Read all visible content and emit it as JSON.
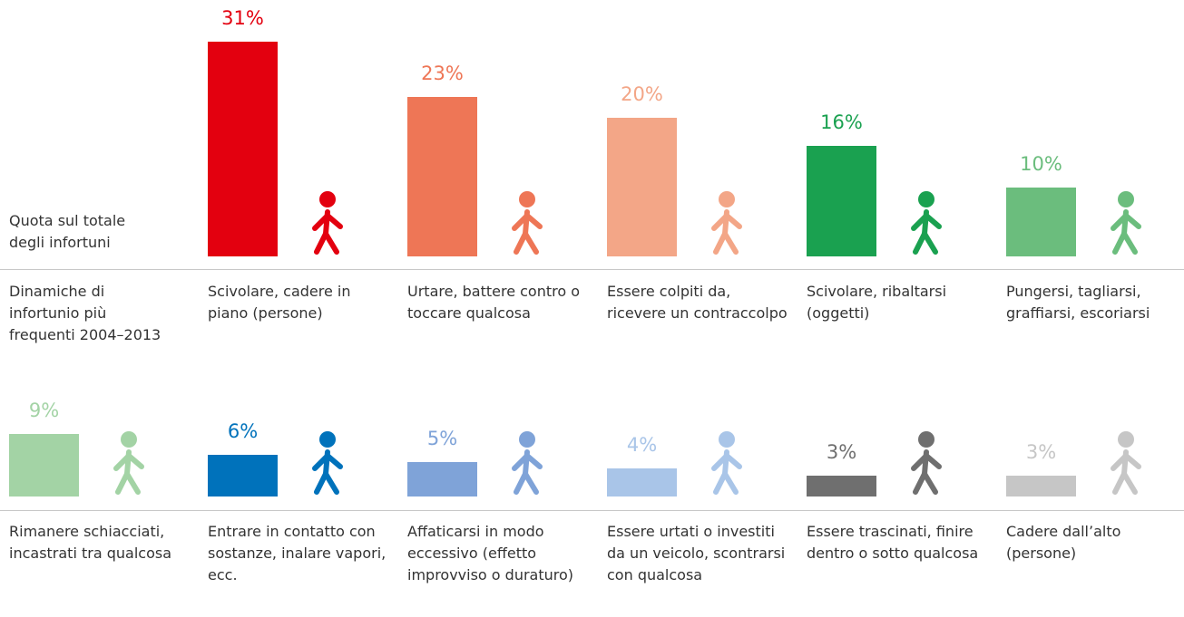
{
  "chart_data": {
    "type": "bar",
    "ylabel": "Quota sul totale degli infortuni",
    "xlabel": "Dinamiche di infortunio più frequenti 2004–2013",
    "categories": [
      "Scivolare, cadere in piano (persone)",
      "Urtare, battere contro o toccare qualcosa",
      "Essere colpiti da, ricevere un contraccolpo",
      "Scivolare, ribaltarsi (oggetti)",
      "Pungersi, tagliarsi, graffiarsi, escoriarsi",
      "Rimanere schiacciati, incastrati tra qualcosa",
      "Entrare in contatto con sostanze, inalare vapori, ecc.",
      "Affaticarsi in modo eccessivo (effetto improvviso o duraturo)",
      "Essere urtati o investiti da un veicolo, scontrarsi con qualcosa",
      "Essere trascinati, finire dentro o sotto qualcosa",
      "Cadere dall’alto (persone)"
    ],
    "values": [
      31,
      23,
      20,
      16,
      10,
      9,
      6,
      5,
      4,
      3,
      3
    ],
    "value_labels": [
      "31%",
      "23%",
      "20%",
      "16%",
      "10%",
      "9%",
      "6%",
      "5%",
      "4%",
      "3%",
      "3%"
    ],
    "colors": [
      "#e3000f",
      "#ee7656",
      "#f3a687",
      "#1aa150",
      "#6bbd7d",
      "#a3d3a5",
      "#0072bb",
      "#7fa3d8",
      "#a9c5e8",
      "#6f6f6f",
      "#c6c6c6"
    ]
  }
}
